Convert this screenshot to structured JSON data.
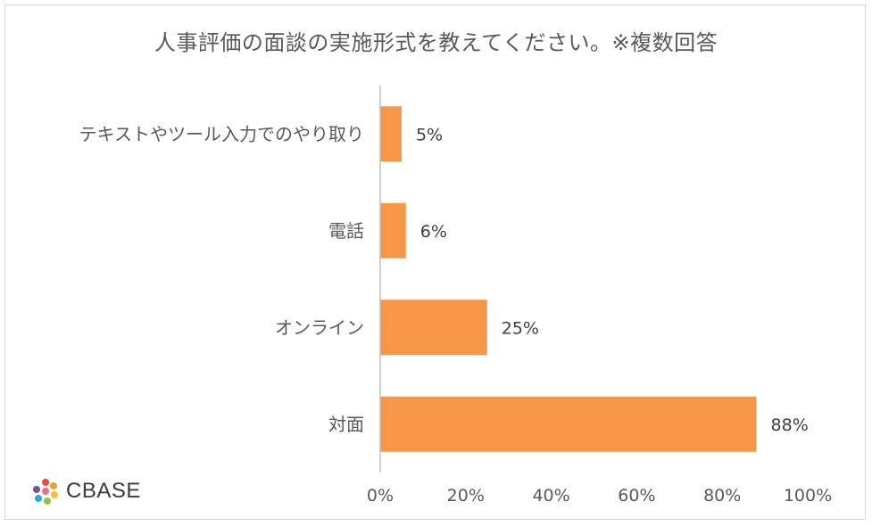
{
  "chart_data": {
    "type": "bar",
    "orientation": "horizontal",
    "title": "人事評価の面談の実施形式を教えてください。※複数回答",
    "categories": [
      "テキストやツール入力でのやり取り",
      "電話",
      "オンライン",
      "対面"
    ],
    "values": [
      5,
      6,
      25,
      88
    ],
    "data_labels": [
      "5%",
      "6%",
      "25%",
      "88%"
    ],
    "xlim": [
      0,
      100
    ],
    "x_ticks": [
      "0%",
      "20%",
      "40%",
      "60%",
      "80%",
      "100%"
    ],
    "x_tick_values": [
      0,
      20,
      40,
      60,
      80,
      100
    ],
    "bar_color": "#F79646",
    "grid": false
  },
  "logo": {
    "text": "CBASE"
  }
}
